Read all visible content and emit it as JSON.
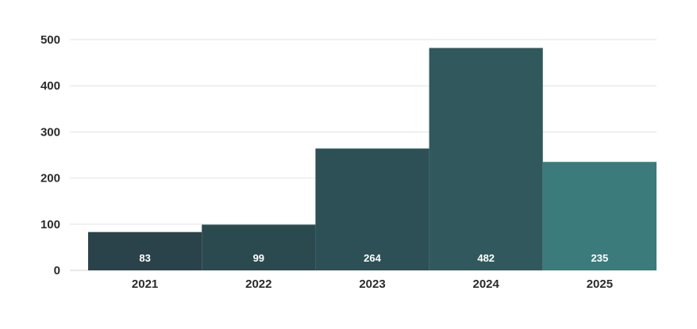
{
  "chart_data": {
    "type": "bar",
    "title": "",
    "xlabel": "",
    "ylabel": "",
    "categories": [
      "2021",
      "2022",
      "2023",
      "2024",
      "2025"
    ],
    "values": [
      83,
      99,
      264,
      482,
      235
    ],
    "value_labels": [
      "83",
      "99",
      "264",
      "482",
      "235"
    ],
    "ylim": [
      0,
      500
    ],
    "yticks": [
      0,
      100,
      200,
      300,
      400,
      500
    ],
    "ytick_labels": [
      "0",
      "100",
      "200",
      "300",
      "400",
      "500"
    ],
    "grid": true,
    "legend": "none",
    "colors": [
      "#2a434b",
      "#2b4a50",
      "#2c5055",
      "#31595d",
      "#3b7b7c"
    ]
  }
}
